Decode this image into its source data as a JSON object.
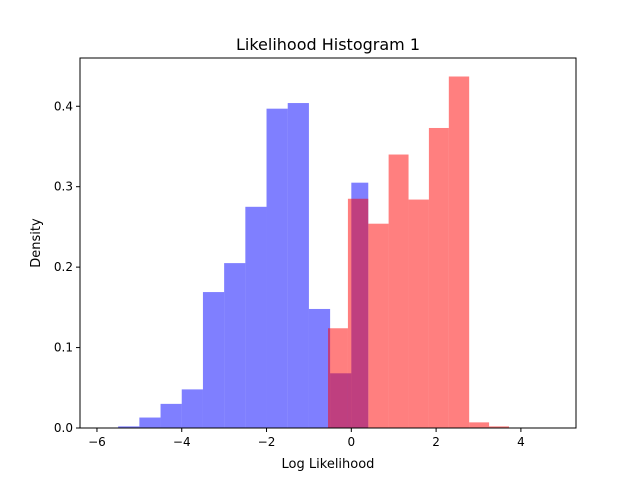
{
  "chart_data": {
    "type": "histogram",
    "title": "Likelihood Histogram 1",
    "xlabel": "Log Likelihood",
    "ylabel": "Density",
    "xlim": [
      -6.4,
      5.3
    ],
    "ylim": [
      0,
      0.46
    ],
    "xticks": [
      -6,
      -4,
      -2,
      0,
      2,
      4
    ],
    "yticks": [
      0.0,
      0.1,
      0.2,
      0.3,
      0.4
    ],
    "xtick_labels": [
      "−6",
      "−4",
      "−2",
      "0",
      "2",
      "4"
    ],
    "ytick_labels": [
      "0.0",
      "0.1",
      "0.2",
      "0.3",
      "0.4"
    ],
    "grid": false,
    "series": [
      {
        "color": "#0000ff",
        "opacity": 0.5,
        "bin_edges": [
          -5.5,
          -5.0,
          -4.5,
          -4.0,
          -3.5,
          -3.0,
          -2.5,
          -2.0,
          -1.5,
          -1.0,
          -0.5,
          0.0,
          0.4
        ],
        "values": [
          0.002,
          0.013,
          0.03,
          0.048,
          0.169,
          0.205,
          0.275,
          0.397,
          0.404,
          0.148,
          0.068,
          0.305
        ]
      },
      {
        "color": "#ff0000",
        "opacity": 0.5,
        "bin_edges": [
          -0.55,
          -0.08,
          0.4,
          0.88,
          1.35,
          1.83,
          2.3,
          2.78,
          3.25,
          3.72
        ],
        "values": [
          0.124,
          0.285,
          0.254,
          0.34,
          0.284,
          0.373,
          0.437,
          0.007,
          0.002
        ]
      }
    ]
  }
}
